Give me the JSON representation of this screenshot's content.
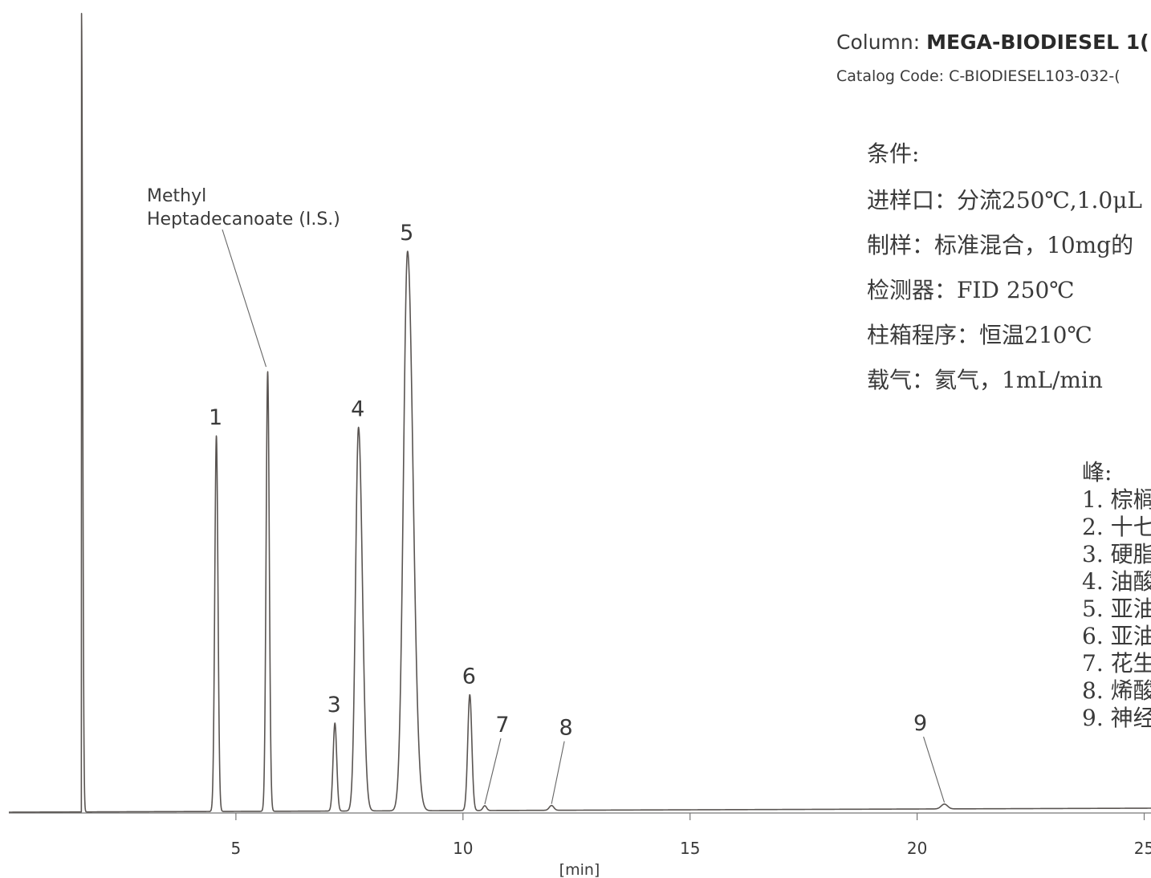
{
  "header": {
    "column_label": "Column:",
    "column_name": "MEGA-BIODIESEL 1(",
    "catalog": "Catalog Code: C-BIODIESEL103-032-("
  },
  "conditions": {
    "title": "条件:",
    "lines": [
      "进样口：分流250℃,1.0μL",
      "制样：标准混合，10mg的",
      "检测器：FID 250℃",
      "柱箱程序：恒温210℃",
      "载气：氦气，1mL/min"
    ]
  },
  "peaks_legend": {
    "title": "峰:",
    "items": [
      "1. 棕榈",
      "2. 十七",
      "3. 硬脂",
      "4. 油酸",
      "5. 亚油",
      "6. 亚油",
      "7. 花生",
      "8. 烯酸",
      "9. 神经"
    ]
  },
  "chart_data": {
    "type": "line",
    "xlabel": "[min]",
    "ylabel": "",
    "xlim": [
      0,
      25.15
    ],
    "ylim": [
      0,
      100
    ],
    "x_ticks": [
      5,
      10,
      15,
      20,
      25
    ],
    "grid": false,
    "line_color": "#5a5552",
    "peaks": [
      {
        "label": "",
        "x": 1.6,
        "height": 100,
        "sigma": 0.025,
        "tail": 0
      },
      {
        "label": "1",
        "x": 4.57,
        "height": 47,
        "sigma": 0.035,
        "tail": 0
      },
      {
        "label": "Methyl Heptadecanoate (I.S.)",
        "x": 5.7,
        "height": 55,
        "sigma": 0.035,
        "tail": 0
      },
      {
        "label": "3",
        "x": 7.18,
        "height": 11,
        "sigma": 0.04,
        "tail": 0
      },
      {
        "label": "4",
        "x": 7.7,
        "height": 48,
        "sigma": 0.065,
        "tail": 0.02
      },
      {
        "label": "5",
        "x": 8.78,
        "height": 70,
        "sigma": 0.09,
        "tail": 0.03
      },
      {
        "label": "6",
        "x": 10.15,
        "height": 14.5,
        "sigma": 0.045,
        "tail": 0
      },
      {
        "label": "7",
        "x": 10.48,
        "height": 0.6,
        "sigma": 0.04,
        "tail": 0
      },
      {
        "label": "8",
        "x": 11.95,
        "height": 0.6,
        "sigma": 0.05,
        "tail": 0
      },
      {
        "label": "9",
        "x": 20.6,
        "height": 0.6,
        "sigma": 0.07,
        "tail": 0
      }
    ]
  }
}
